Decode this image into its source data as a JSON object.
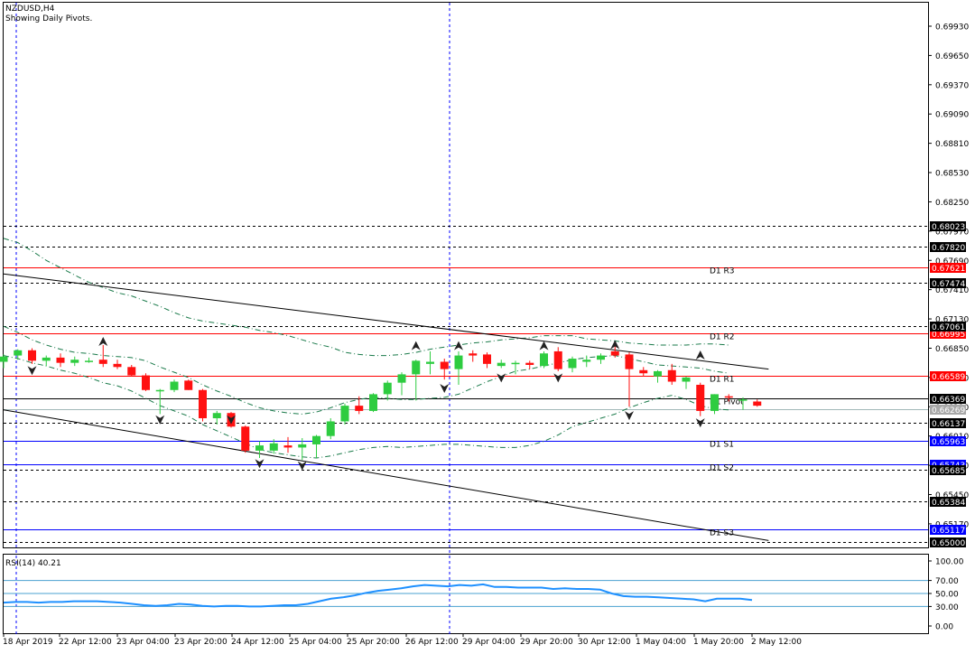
{
  "header": {
    "symbol": "NZDUSD,H4",
    "indicator_label": "Showing Daily Pivots."
  },
  "colors": {
    "bull": "#2ecc40",
    "bear": "#ff1111",
    "pivot_line": "#000000",
    "resistance_line": "#ff0000",
    "support_line": "#0000ff",
    "dashed_line": "#000000",
    "bollinger": "#1a7a4a",
    "rsi_line": "#1e90ff",
    "rsi_levels": "#4aa0d0",
    "channel": "#000000",
    "frame": "#000000"
  },
  "chart_data": [
    {
      "type": "candlestick",
      "title": "NZDUSD,H4",
      "ylim": [
        0.65,
        0.7
      ],
      "y_ticks": [
        "0.69930",
        "0.69650",
        "0.69370",
        "0.69090",
        "0.68810",
        "0.68530",
        "0.68250",
        "0.67970",
        "0.67690",
        "0.67410",
        "0.67130",
        "0.66850",
        "0.66570",
        "0.66290",
        "0.66010",
        "0.65730",
        "0.65450",
        "0.65170"
      ],
      "x_ticks": [
        "18 Apr 2019",
        "22 Apr 12:00",
        "23 Apr 04:00",
        "23 Apr 20:00",
        "24 Apr 12:00",
        "25 Apr 04:00",
        "25 Apr 20:00",
        "26 Apr 12:00",
        "29 Apr 04:00",
        "29 Apr 20:00",
        "30 Apr 12:00",
        "1 May 04:00",
        "1 May 20:00",
        "2 May 12:00"
      ],
      "candles": [
        [
          0.6672,
          0.6679,
          0.6666,
          0.6677
        ],
        [
          0.6678,
          0.6684,
          0.6674,
          0.6683
        ],
        [
          0.6683,
          0.6685,
          0.667,
          0.6673
        ],
        [
          0.6673,
          0.6678,
          0.6668,
          0.6676
        ],
        [
          0.6676,
          0.668,
          0.6667,
          0.6671
        ],
        [
          0.6671,
          0.6677,
          0.6668,
          0.6674
        ],
        [
          0.6673,
          0.6676,
          0.6671,
          0.6673
        ],
        [
          0.6674,
          0.6688,
          0.6667,
          0.667
        ],
        [
          0.667,
          0.6674,
          0.6665,
          0.6667
        ],
        [
          0.6667,
          0.6669,
          0.6658,
          0.6659
        ],
        [
          0.6659,
          0.6661,
          0.6644,
          0.6645
        ],
        [
          0.6645,
          0.6646,
          0.6622,
          0.6645
        ],
        [
          0.6645,
          0.6655,
          0.6643,
          0.6653
        ],
        [
          0.6654,
          0.6655,
          0.6645,
          0.6645
        ],
        [
          0.6645,
          0.6646,
          0.6615,
          0.6618
        ],
        [
          0.6618,
          0.6625,
          0.6612,
          0.6623
        ],
        [
          0.6623,
          0.6624,
          0.6609,
          0.661
        ],
        [
          0.661,
          0.6611,
          0.6585,
          0.6587
        ],
        [
          0.6587,
          0.6596,
          0.658,
          0.6592
        ],
        [
          0.6587,
          0.6598,
          0.6584,
          0.6594
        ],
        [
          0.6592,
          0.66,
          0.6585,
          0.659
        ],
        [
          0.659,
          0.6599,
          0.6578,
          0.6593
        ],
        [
          0.6593,
          0.6602,
          0.658,
          0.6601
        ],
        [
          0.6601,
          0.6618,
          0.6598,
          0.6615
        ],
        [
          0.6615,
          0.6632,
          0.6612,
          0.663
        ],
        [
          0.663,
          0.6639,
          0.6622,
          0.6625
        ],
        [
          0.6625,
          0.6642,
          0.6624,
          0.6641
        ],
        [
          0.6641,
          0.6654,
          0.6635,
          0.6652
        ],
        [
          0.6652,
          0.6662,
          0.664,
          0.666
        ],
        [
          0.666,
          0.6674,
          0.6635,
          0.6673
        ],
        [
          0.667,
          0.6682,
          0.666,
          0.6672
        ],
        [
          0.6672,
          0.6675,
          0.6655,
          0.6665
        ],
        [
          0.6665,
          0.6682,
          0.665,
          0.6678
        ],
        [
          0.668,
          0.6683,
          0.6672,
          0.6678
        ],
        [
          0.6679,
          0.6681,
          0.6666,
          0.667
        ],
        [
          0.6668,
          0.6674,
          0.6666,
          0.6671
        ],
        [
          0.667,
          0.6673,
          0.666,
          0.6671
        ],
        [
          0.6671,
          0.6673,
          0.6665,
          0.6669
        ],
        [
          0.6668,
          0.6682,
          0.6666,
          0.668
        ],
        [
          0.6682,
          0.6686,
          0.6663,
          0.6665
        ],
        [
          0.6666,
          0.6677,
          0.6662,
          0.6675
        ],
        [
          0.6672,
          0.6678,
          0.6667,
          0.6674
        ],
        [
          0.6674,
          0.668,
          0.667,
          0.6678
        ],
        [
          0.6682,
          0.6687,
          0.6676,
          0.6678
        ],
        [
          0.6679,
          0.6681,
          0.6629,
          0.6665
        ],
        [
          0.6664,
          0.6667,
          0.6658,
          0.6661
        ],
        [
          0.6658,
          0.6664,
          0.6652,
          0.6663
        ],
        [
          0.6664,
          0.667,
          0.665,
          0.6653
        ],
        [
          0.6653,
          0.6658,
          0.6646,
          0.6657
        ],
        [
          0.665,
          0.6652,
          0.662,
          0.6625
        ],
        [
          0.6625,
          0.6641,
          0.6622,
          0.6641
        ],
        [
          0.6639,
          0.6641,
          0.6634,
          0.6638
        ],
        [
          0.6636,
          0.6638,
          0.6626,
          0.6636
        ],
        [
          0.6634,
          0.6636,
          0.6629,
          0.663
        ]
      ],
      "candle_indices_omitted": [],
      "horizontal_levels": [
        {
          "name": "D1 R3",
          "value": 0.67621,
          "label": "0.67621",
          "style": "resistance"
        },
        {
          "name": "D1 R2",
          "value": 0.66995,
          "label": "0.66995",
          "style": "resistance"
        },
        {
          "name": "D1 R1",
          "value": 0.66589,
          "label": "0.66589",
          "style": "resistance"
        },
        {
          "name": "D1 Pivot",
          "value": 0.66369,
          "label": "0.66369",
          "style": "pivot"
        },
        {
          "name": "D1 S1",
          "value": 0.65963,
          "label": "0.65963",
          "style": "support"
        },
        {
          "name": "D1 S2",
          "value": 0.65743,
          "label": "0.65743",
          "style": "support"
        },
        {
          "name": "D1 S3",
          "value": 0.65117,
          "label": "0.65117",
          "style": "support"
        },
        {
          "name": "",
          "value": 0.68023,
          "label": "0.68023",
          "style": "dashed"
        },
        {
          "name": "",
          "value": 0.6782,
          "label": "0.67820",
          "style": "dashed"
        },
        {
          "name": "",
          "value": 0.67474,
          "label": "0.67474",
          "style": "dashed"
        },
        {
          "name": "",
          "value": 0.67061,
          "label": "0.67061",
          "style": "dashed"
        },
        {
          "name": "",
          "value": 0.66137,
          "label": "0.66137",
          "style": "dashed"
        },
        {
          "name": "",
          "value": 0.65685,
          "label": "0.65685",
          "style": "dashed"
        },
        {
          "name": "",
          "value": 0.65384,
          "label": "0.65384",
          "style": "dashed"
        },
        {
          "name": "",
          "value": 0.65,
          "label": "0.65000",
          "style": "dashed"
        }
      ],
      "current_price": {
        "value": 0.66269,
        "label": "0.66269"
      },
      "trend_lines": [
        {
          "name": "upper-channel",
          "x_from": 0,
          "y_from": 0.6756,
          "x_to": 53.8,
          "y_to": 0.6665
        },
        {
          "name": "lower-channel",
          "x_from": 0,
          "y_from": 0.6626,
          "x_to": 53.8,
          "y_to": 0.6501
        }
      ],
      "bollinger_upper": [
        0.679,
        0.6786,
        0.6778,
        0.6769,
        0.6762,
        0.6755,
        0.6748,
        0.6743,
        0.6738,
        0.6735,
        0.673,
        0.6725,
        0.6719,
        0.6714,
        0.6711,
        0.6709,
        0.6707,
        0.6705,
        0.6702,
        0.67,
        0.6697,
        0.6693,
        0.6689,
        0.6686,
        0.6681,
        0.6679,
        0.6678,
        0.6678,
        0.6679,
        0.6681,
        0.6684,
        0.6686,
        0.6688,
        0.669,
        0.6691,
        0.6693,
        0.6694,
        0.6695,
        0.6697,
        0.6697,
        0.6697,
        0.6694,
        0.6693,
        0.6692,
        0.669,
        0.6689,
        0.6688,
        0.6688,
        0.6688,
        0.6689,
        0.6689,
        0.6688
      ],
      "bollinger_middle": [
        0.6706,
        0.67,
        0.6693,
        0.6688,
        0.6684,
        0.6681,
        0.668,
        0.6678,
        0.6677,
        0.6676,
        0.6673,
        0.6667,
        0.6662,
        0.6657,
        0.665,
        0.6644,
        0.6639,
        0.6633,
        0.6628,
        0.6625,
        0.6623,
        0.6622,
        0.6624,
        0.6628,
        0.6633,
        0.6636,
        0.6638,
        0.6637,
        0.6636,
        0.6636,
        0.6637,
        0.6638,
        0.6641,
        0.6647,
        0.6653,
        0.6658,
        0.6663,
        0.6665,
        0.6668,
        0.6671,
        0.6674,
        0.6676,
        0.6677,
        0.6678,
        0.6675,
        0.6672,
        0.6669,
        0.6668,
        0.6667,
        0.6666,
        0.6663,
        0.6661
      ],
      "bollinger_lower": [
        0.6678,
        0.6675,
        0.6671,
        0.6668,
        0.6664,
        0.6661,
        0.6657,
        0.6652,
        0.6649,
        0.6644,
        0.6637,
        0.663,
        0.6625,
        0.662,
        0.6612,
        0.6606,
        0.66,
        0.6594,
        0.6588,
        0.6585,
        0.6583,
        0.6581,
        0.658,
        0.6582,
        0.6585,
        0.6588,
        0.659,
        0.6591,
        0.659,
        0.6591,
        0.6592,
        0.6593,
        0.6593,
        0.6592,
        0.6591,
        0.659,
        0.659,
        0.6592,
        0.6596,
        0.6602,
        0.661,
        0.6614,
        0.6618,
        0.6622,
        0.6628,
        0.6633,
        0.6637,
        0.664,
        0.6636,
        0.663,
        0.6627,
        0.6626
      ],
      "fractals_up": [
        {
          "i": 7,
          "value": 0.6688
        },
        {
          "i": 29,
          "value": 0.6684
        },
        {
          "i": 32,
          "value": 0.6684
        },
        {
          "i": 38,
          "value": 0.6684
        },
        {
          "i": 43,
          "value": 0.6685
        },
        {
          "i": 49,
          "value": 0.6675
        }
      ],
      "fractals_down": [
        {
          "i": 2,
          "value": 0.6667
        },
        {
          "i": 11,
          "value": 0.662
        },
        {
          "i": 16,
          "value": 0.662
        },
        {
          "i": 18,
          "value": 0.6578
        },
        {
          "i": 21,
          "value": 0.6576
        },
        {
          "i": 31,
          "value": 0.665
        },
        {
          "i": 35,
          "value": 0.666
        },
        {
          "i": 39,
          "value": 0.666
        },
        {
          "i": 44,
          "value": 0.6624
        },
        {
          "i": 49,
          "value": 0.6617
        }
      ]
    },
    {
      "type": "line",
      "title": "RSI(14) 40.21",
      "ylim": [
        0,
        100
      ],
      "y_ticks": [
        "100.00",
        "70.00",
        "50.00",
        "30.00",
        "0.00"
      ],
      "levels": [
        70,
        50,
        30
      ],
      "series": [
        {
          "name": "RSI(14)",
          "values": [
            36,
            37,
            37,
            36,
            37,
            37,
            38,
            38,
            38,
            37,
            36,
            34,
            32,
            31,
            32,
            34,
            33,
            31,
            30,
            31,
            31,
            30,
            30,
            31,
            32,
            32,
            34,
            38,
            42,
            44,
            47,
            51,
            54,
            56,
            58,
            61,
            63,
            62,
            61,
            63,
            62,
            64,
            60,
            60,
            59,
            59,
            59,
            57,
            58,
            57,
            57,
            56,
            50,
            46,
            45,
            45,
            44,
            43,
            42,
            41,
            38,
            42,
            42,
            42,
            40
          ]
        }
      ]
    }
  ]
}
